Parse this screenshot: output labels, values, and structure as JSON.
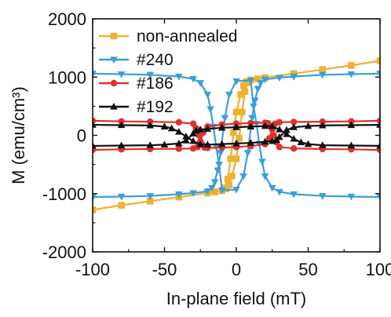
{
  "chart_data": {
    "type": "line",
    "title": "",
    "xlabel": "In-plane field (mT)",
    "ylabel": "M (emu/cm³)",
    "xlim": [
      -100,
      100
    ],
    "ylim": [
      -2000,
      2000
    ],
    "xticks": [
      -100,
      -50,
      0,
      50,
      100
    ],
    "yticks": [
      -2000,
      -1000,
      0,
      1000,
      2000
    ],
    "grid": false,
    "legend_position": "top-left",
    "series": [
      {
        "name": "non-annealed",
        "color": "#f0b030",
        "marker": "square",
        "x": [
          -100,
          -80,
          -60,
          -40,
          -20,
          -15,
          -10,
          -7,
          -5,
          -3,
          0,
          2,
          4,
          6,
          8,
          10,
          15,
          20,
          40,
          60,
          80,
          100,
          100,
          80,
          60,
          40,
          20,
          15,
          10,
          7,
          5,
          3,
          0,
          -2,
          -4,
          -6,
          -8,
          -10,
          -15,
          -20,
          -40,
          -60,
          -80,
          -100
        ],
        "y": [
          -1280,
          -1200,
          -1130,
          -1060,
          -990,
          -970,
          -950,
          -920,
          -850,
          -700,
          -400,
          -50,
          400,
          750,
          900,
          950,
          970,
          990,
          1060,
          1130,
          1200,
          1280,
          1280,
          1200,
          1130,
          1060,
          990,
          970,
          950,
          920,
          850,
          700,
          400,
          50,
          -400,
          -750,
          -900,
          -950,
          -970,
          -990,
          -1060,
          -1130,
          -1200,
          -1280
        ]
      },
      {
        "name": "#240",
        "color": "#3a9fdc",
        "marker": "triangle-down",
        "x": [
          -100,
          -80,
          -60,
          -40,
          -30,
          -20,
          -17,
          -15,
          -13,
          -11,
          -8,
          -5,
          0,
          10,
          12,
          14,
          16,
          18,
          20,
          25,
          30,
          40,
          60,
          80,
          100,
          100,
          80,
          60,
          40,
          30,
          20,
          17,
          15,
          13,
          11,
          8,
          5,
          0,
          -10,
          -12,
          -14,
          -16,
          -18,
          -20,
          -25,
          -30,
          -40,
          -60,
          -80,
          -100
        ],
        "y": [
          -1060,
          -1050,
          -1040,
          -1010,
          -990,
          -960,
          -900,
          -800,
          -600,
          -300,
          300,
          700,
          930,
          940,
          500,
          200,
          -150,
          -450,
          -700,
          -900,
          -970,
          -1010,
          -1040,
          -1050,
          -1060,
          1060,
          1050,
          1040,
          1010,
          990,
          960,
          900,
          800,
          600,
          300,
          -300,
          -700,
          -930,
          -940,
          -500,
          -200,
          150,
          450,
          700,
          900,
          970,
          1010,
          1040,
          1050,
          1060
        ]
      },
      {
        "name": "#186",
        "color": "#e03030",
        "marker": "circle",
        "x": [
          -100,
          -80,
          -60,
          -40,
          -30,
          -27,
          -25,
          -23,
          -20,
          -10,
          0,
          10,
          20,
          22,
          24,
          26,
          28,
          30,
          40,
          60,
          80,
          100,
          100,
          80,
          60,
          40,
          30,
          27,
          25,
          23,
          20,
          10,
          0,
          -10,
          -20,
          -22,
          -24,
          -26,
          -28,
          -30,
          -40,
          -60,
          -80,
          -100
        ],
        "y": [
          -250,
          -240,
          -235,
          -230,
          -225,
          -200,
          -100,
          50,
          150,
          185,
          200,
          210,
          215,
          210,
          150,
          0,
          -120,
          -200,
          -225,
          -235,
          -240,
          -250,
          250,
          240,
          235,
          230,
          225,
          200,
          100,
          -50,
          -150,
          -185,
          -200,
          -210,
          -215,
          -210,
          -150,
          0,
          120,
          200,
          225,
          235,
          240,
          250
        ]
      },
      {
        "name": "#192",
        "color": "#111111",
        "marker": "triangle-up",
        "x": [
          -100,
          -80,
          -60,
          -50,
          -40,
          -35,
          -30,
          -28,
          -25,
          -20,
          -10,
          0,
          10,
          20,
          25,
          30,
          35,
          40,
          45,
          50,
          60,
          80,
          100,
          100,
          80,
          60,
          50,
          40,
          35,
          30,
          28,
          25,
          20,
          10,
          0,
          -10,
          -20,
          -25,
          -30,
          -35,
          -40,
          -45,
          -50,
          -60,
          -80,
          -100
        ],
        "y": [
          -180,
          -175,
          -170,
          -160,
          -140,
          -90,
          30,
          80,
          100,
          110,
          130,
          140,
          150,
          160,
          155,
          100,
          20,
          -60,
          -120,
          -150,
          -170,
          -175,
          -180,
          180,
          175,
          170,
          160,
          140,
          90,
          -30,
          -80,
          -100,
          -110,
          -130,
          -140,
          -150,
          -160,
          -155,
          -100,
          -20,
          60,
          120,
          150,
          170,
          175,
          180
        ]
      }
    ]
  }
}
